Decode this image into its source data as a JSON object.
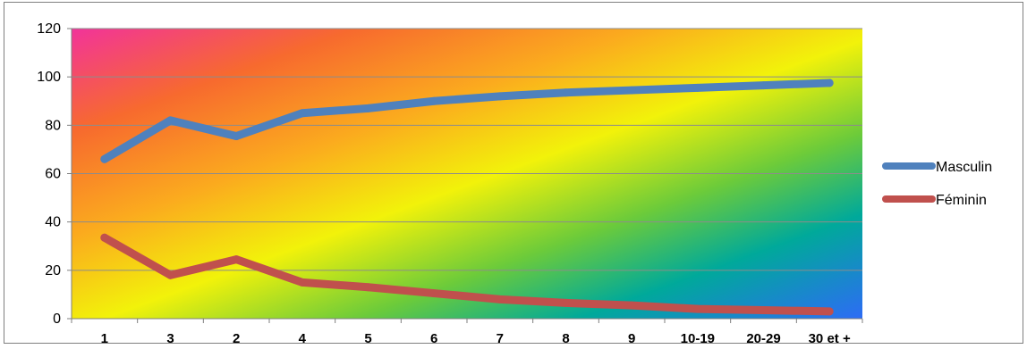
{
  "chart_data": {
    "type": "line",
    "categories": [
      "1",
      "3",
      "2",
      "4",
      "5",
      "6",
      "7",
      "8",
      "9",
      "10-19",
      "20-29",
      "30 et +"
    ],
    "series": [
      {
        "name": "Masculin",
        "color": "#4f81bd",
        "values": [
          66,
          82,
          75.5,
          85,
          87,
          90,
          92,
          93.5,
          94.5,
          95.5,
          96.5,
          97.5
        ]
      },
      {
        "name": "Féminin",
        "color": "#c0504d",
        "values": [
          33.5,
          18,
          24.5,
          15,
          13,
          10.5,
          8,
          6.5,
          5.5,
          4,
          3.5,
          3
        ]
      }
    ],
    "ylim": [
      0,
      120
    ],
    "yticks": [
      "0",
      "20",
      "40",
      "60",
      "80",
      "100",
      "120"
    ],
    "title": "",
    "xlabel": "",
    "ylabel": "",
    "grid": true,
    "legend": "right",
    "background": "diagonal gradient: magenta, orange, yellow, green, teal, blue"
  }
}
